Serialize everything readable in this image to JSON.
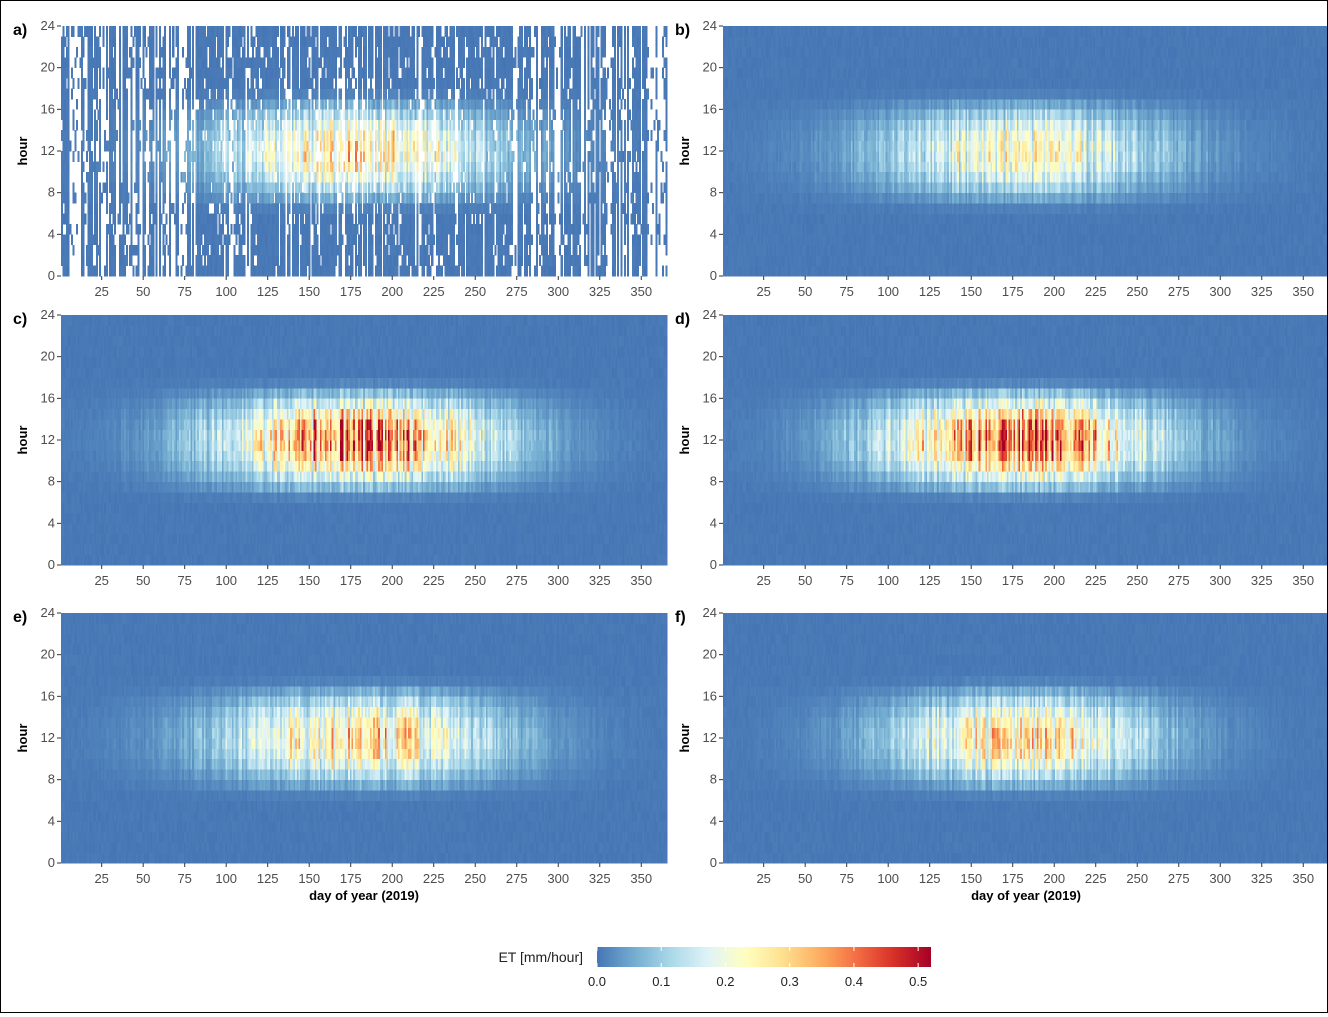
{
  "chart_data": {
    "type": "heatmap",
    "legend": {
      "title": "ET [mm/hour]",
      "ticks": [
        0.0,
        0.1,
        0.2,
        0.3,
        0.4,
        0.5
      ],
      "tick_labels": [
        "0.0",
        "0.1",
        "0.2",
        "0.3",
        "0.4",
        "0.5"
      ],
      "range": [
        0,
        0.52
      ],
      "placement": "bottom-center",
      "colors": [
        "#4575b4",
        "#74add1",
        "#abd9e9",
        "#e0f3f8",
        "#ffffbf",
        "#fee090",
        "#fdae61",
        "#f46d43",
        "#d73027",
        "#a50026"
      ]
    },
    "xlabel": "day of year (2019)",
    "ylabel": "hour",
    "xlim": [
      1,
      365
    ],
    "ylim": [
      0,
      24
    ],
    "x_ticks": [
      25,
      50,
      75,
      100,
      125,
      150,
      175,
      200,
      225,
      250,
      275,
      300,
      325,
      350
    ],
    "x_tick_labels": [
      "25",
      "50",
      "75",
      "100",
      "125",
      "150",
      "175",
      "200",
      "225",
      "250",
      "275",
      "300",
      "325",
      "350"
    ],
    "y_ticks": [
      0,
      4,
      8,
      12,
      16,
      20,
      24
    ],
    "y_tick_labels": [
      "0",
      "4",
      "8",
      "12",
      "16",
      "20",
      "24"
    ],
    "grid": false,
    "seasonal_peak_day": 180,
    "panels": [
      {
        "tag": "a)",
        "peak_et": 0.32,
        "season_width_days": 58,
        "day_window": [
          6,
          17
        ],
        "missing_data": true
      },
      {
        "tag": "b)",
        "peak_et": 0.27,
        "season_width_days": 60,
        "day_window": [
          6,
          17
        ],
        "missing_data": false
      },
      {
        "tag": "c)",
        "peak_et": 0.48,
        "season_width_days": 58,
        "day_window": [
          6,
          17
        ],
        "missing_data": false
      },
      {
        "tag": "d)",
        "peak_et": 0.5,
        "season_width_days": 57,
        "day_window": [
          6,
          17
        ],
        "missing_data": false
      },
      {
        "tag": "e)",
        "peak_et": 0.34,
        "season_width_days": 58,
        "day_window": [
          6,
          17
        ],
        "missing_data": false
      },
      {
        "tag": "f)",
        "peak_et": 0.33,
        "season_width_days": 55,
        "day_window": [
          6,
          17
        ],
        "missing_data": false
      }
    ]
  }
}
